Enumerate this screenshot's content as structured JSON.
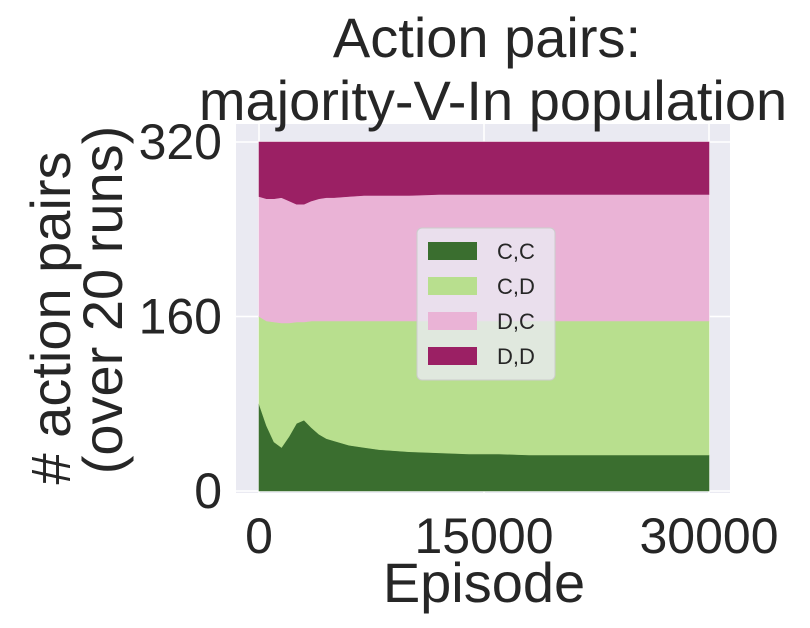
{
  "chart_data": {
    "type": "area",
    "stacked": true,
    "title_lines": [
      "Action pairs:",
      "majority-V-In population"
    ],
    "xlabel": "Episode",
    "ylabel_lines": [
      "# action pairs",
      "(over 20 runs)"
    ],
    "xlim": [
      0,
      30000
    ],
    "ylim": [
      0,
      320
    ],
    "x_ticks": [
      0,
      15000,
      30000
    ],
    "y_ticks": [
      0,
      160,
      320
    ],
    "grid": true,
    "legend_position": "center",
    "x": [
      0,
      500,
      1000,
      1500,
      2000,
      2500,
      3000,
      3500,
      4000,
      4500,
      5000,
      6000,
      7000,
      8000,
      10000,
      12000,
      14000,
      16000,
      18000,
      20000,
      22000,
      24000,
      26000,
      28000,
      30000
    ],
    "series": [
      {
        "name": "C,C",
        "color": "#3a6e2f",
        "values": [
          80,
          60,
          45,
          40,
          50,
          62,
          65,
          58,
          52,
          48,
          46,
          42,
          40,
          38,
          36,
          35,
          34,
          34,
          33,
          33,
          33,
          33,
          33,
          33,
          33
        ]
      },
      {
        "name": "C,D",
        "color": "#b8df8e",
        "values": [
          80,
          96,
          110,
          114,
          104,
          93,
          90,
          98,
          104,
          108,
          110,
          114,
          116,
          118,
          120,
          121,
          122,
          122,
          123,
          123,
          123,
          123,
          123,
          123,
          123
        ]
      },
      {
        "name": "D,C",
        "color": "#eab3d6",
        "values": [
          110,
          112,
          113,
          115,
          112,
          108,
          108,
          110,
          112,
          113,
          113,
          114,
          115,
          115,
          115,
          116,
          116,
          116,
          116,
          116,
          116,
          116,
          116,
          116,
          116
        ]
      },
      {
        "name": "D,D",
        "color": "#9b2064",
        "values": [
          50,
          52,
          52,
          51,
          54,
          57,
          57,
          54,
          52,
          51,
          51,
          50,
          49,
          49,
          49,
          48,
          48,
          48,
          48,
          48,
          48,
          48,
          48,
          48,
          48
        ]
      }
    ]
  }
}
